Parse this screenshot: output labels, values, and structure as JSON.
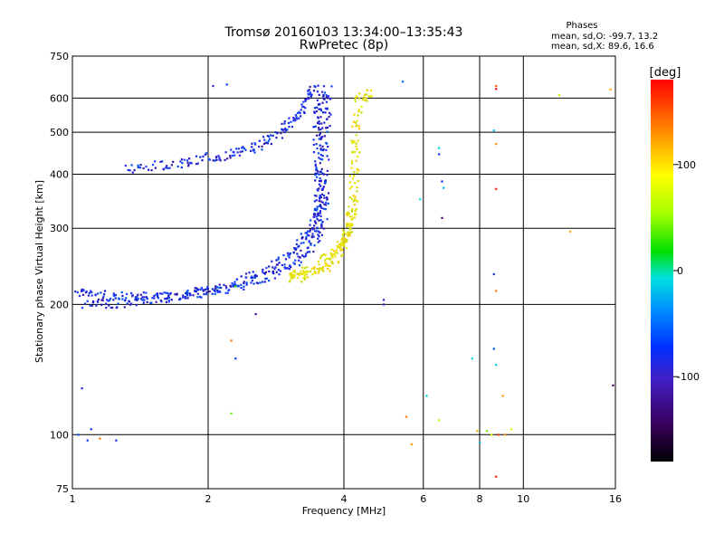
{
  "chart_data": {
    "type": "scatter",
    "title": "Tromsø 20160103 13:34:00–13:35:43",
    "subtitle": "RwPretec (8p)",
    "stats": {
      "heading": "Phases",
      "line_o": "mean, sd,O: -99.7, 13.2",
      "line_x": "mean, sd,X:  89.6, 16.6"
    },
    "xlabel": "Frequency [MHz]",
    "ylabel": "Stationary phase Virtual Height [km]",
    "x_scale": "log",
    "y_scale": "log",
    "xlim": [
      1,
      16
    ],
    "ylim": [
      75,
      750
    ],
    "x_ticks": [
      1,
      2,
      4,
      6,
      8,
      10,
      16
    ],
    "y_ticks": [
      75,
      100,
      200,
      300,
      400,
      500,
      600,
      750
    ],
    "x_tick_labels": [
      "1",
      "2",
      "4",
      "6",
      "8",
      "10",
      "16"
    ],
    "y_tick_labels": [
      "75",
      "100",
      "200",
      "300",
      "400",
      "500",
      "600",
      "750"
    ],
    "grid": true,
    "colorbar": {
      "label": "[deg]",
      "range": [
        -180,
        180
      ],
      "ticks": [
        100,
        0,
        -100
      ],
      "tick_labels": [
        "100",
        "0",
        "-100"
      ]
    },
    "series": [
      {
        "polarization": "O",
        "color_value": -100,
        "color": "#1030e0",
        "segments": [
          [
            [
              1.02,
              213
            ],
            [
              1.1,
              211
            ],
            [
              1.2,
              209
            ],
            [
              1.35,
              208
            ],
            [
              1.5,
              209
            ],
            [
              1.7,
              210
            ],
            [
              1.9,
              213
            ],
            [
              2.1,
              218
            ],
            [
              2.35,
              225
            ],
            [
              2.6,
              235
            ],
            [
              2.85,
              248
            ],
            [
              3.05,
              262
            ],
            [
              3.25,
              280
            ],
            [
              3.4,
              300
            ],
            [
              3.5,
              330
            ],
            [
              3.58,
              370
            ],
            [
              3.62,
              420
            ],
            [
              3.65,
              500
            ],
            [
              3.67,
              560
            ],
            [
              3.68,
              640
            ]
          ],
          [
            [
              1.05,
              199
            ],
            [
              1.2,
              200
            ],
            [
              1.35,
              203
            ],
            [
              1.5,
              206
            ],
            [
              1.7,
              209
            ],
            [
              1.9,
              212
            ],
            [
              2.1,
              216
            ],
            [
              2.35,
              220
            ],
            [
              2.6,
              228
            ],
            [
              2.9,
              238
            ],
            [
              3.15,
              252
            ],
            [
              3.35,
              268
            ],
            [
              3.5,
              290
            ],
            [
              3.6,
              320
            ],
            [
              3.65,
              360
            ]
          ],
          [
            [
              1.3,
              410
            ],
            [
              1.5,
              418
            ],
            [
              1.7,
              425
            ],
            [
              1.9,
              432
            ],
            [
              2.1,
              440
            ],
            [
              2.3,
              448
            ],
            [
              2.5,
              460
            ],
            [
              2.7,
              478
            ],
            [
              2.9,
              500
            ],
            [
              3.05,
              525
            ],
            [
              3.2,
              560
            ],
            [
              3.35,
              600
            ],
            [
              3.45,
              640
            ]
          ],
          [
            [
              3.45,
              300
            ],
            [
              3.5,
              340
            ],
            [
              3.52,
              380
            ],
            [
              3.5,
              420
            ],
            [
              3.48,
              470
            ],
            [
              3.5,
              520
            ],
            [
              3.52,
              570
            ],
            [
              3.55,
              620
            ]
          ]
        ]
      },
      {
        "polarization": "X",
        "color_value": 90,
        "color": "#e8d800",
        "segments": [
          [
            [
              3.0,
              232
            ],
            [
              3.2,
              236
            ],
            [
              3.45,
              245
            ],
            [
              3.7,
              258
            ],
            [
              3.9,
              272
            ],
            [
              4.05,
              290
            ],
            [
              4.15,
              315
            ],
            [
              4.2,
              350
            ],
            [
              4.22,
              400
            ],
            [
              4.24,
              460
            ],
            [
              4.27,
              530
            ],
            [
              4.3,
              620
            ]
          ],
          [
            [
              3.05,
              228
            ],
            [
              3.3,
              232
            ],
            [
              3.6,
              242
            ],
            [
              3.85,
              258
            ],
            [
              4.0,
              275
            ],
            [
              4.1,
              300
            ],
            [
              4.15,
              340
            ]
          ],
          [
            [
              4.5,
              600
            ],
            [
              4.55,
              615
            ]
          ]
        ]
      }
    ],
    "scattered_points": [
      [
        1.03,
        100,
        -90
      ],
      [
        1.1,
        103,
        -100
      ],
      [
        1.08,
        97,
        -95
      ],
      [
        1.25,
        97,
        -105
      ],
      [
        1.15,
        98,
        140
      ],
      [
        1.05,
        128,
        -110
      ],
      [
        2.05,
        640,
        -120
      ],
      [
        2.2,
        645,
        -95
      ],
      [
        2.25,
        165,
        140
      ],
      [
        2.3,
        150,
        -100
      ],
      [
        2.25,
        112,
        30
      ],
      [
        2.55,
        190,
        -140
      ],
      [
        2.3,
        220,
        20
      ],
      [
        4.9,
        205,
        -115
      ],
      [
        4.9,
        200,
        -110
      ],
      [
        5.5,
        110,
        140
      ],
      [
        5.65,
        95,
        130
      ],
      [
        5.9,
        350,
        -20
      ],
      [
        6.1,
        123,
        -30
      ],
      [
        6.5,
        460,
        -20
      ],
      [
        6.5,
        445,
        -100
      ],
      [
        6.6,
        385,
        -100
      ],
      [
        6.65,
        372,
        -40
      ],
      [
        6.6,
        317,
        -150
      ],
      [
        6.5,
        108,
        50
      ],
      [
        7.7,
        150,
        -20
      ],
      [
        7.9,
        102,
        120
      ],
      [
        8.0,
        96,
        -40
      ],
      [
        8.3,
        102,
        30
      ],
      [
        8.5,
        100,
        80
      ],
      [
        8.7,
        640,
        150
      ],
      [
        8.7,
        630,
        180
      ],
      [
        8.6,
        505,
        -30
      ],
      [
        8.7,
        470,
        130
      ],
      [
        8.7,
        370,
        170
      ],
      [
        8.6,
        235,
        -110
      ],
      [
        8.7,
        215,
        140
      ],
      [
        8.6,
        158,
        -90
      ],
      [
        8.7,
        145,
        -30
      ],
      [
        9.0,
        123,
        130
      ],
      [
        8.8,
        100,
        160
      ],
      [
        9.1,
        100,
        130
      ],
      [
        9.4,
        103,
        80
      ],
      [
        8.7,
        80,
        170
      ],
      [
        12.0,
        610,
        60
      ],
      [
        12.7,
        295,
        120
      ],
      [
        15.6,
        628,
        120
      ],
      [
        15.8,
        130,
        -150
      ],
      [
        5.4,
        655,
        -80
      ]
    ]
  }
}
